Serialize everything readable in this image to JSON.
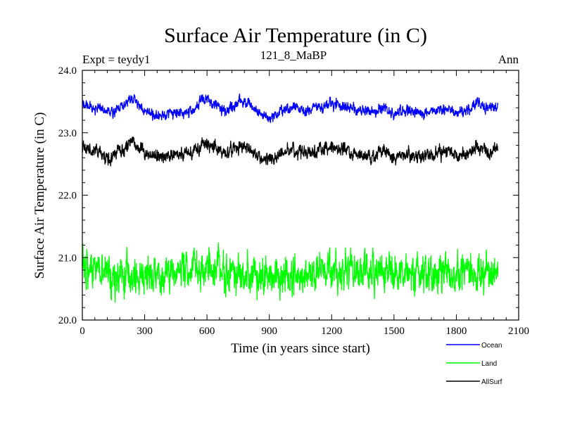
{
  "chart_data": {
    "type": "line",
    "title": "Surface Air Temperature (in C)",
    "subtitle": "121_8_MaBP",
    "experiment_label": "Expt = teydy1",
    "period_label": "Ann",
    "xlabel": "Time (in years since start)",
    "ylabel": "Surface Air Temperature (in C)",
    "xlim": [
      0,
      2100
    ],
    "ylim": [
      20.0,
      24.0
    ],
    "x_ticks": [
      0,
      300,
      600,
      900,
      1200,
      1500,
      1800,
      2100
    ],
    "x_tick_labels": [
      "0",
      "300",
      "600",
      "900",
      "1200",
      "1500",
      "1800",
      "2100"
    ],
    "y_ticks": [
      20.0,
      21.0,
      22.0,
      23.0,
      24.0
    ],
    "y_tick_labels": [
      "20.0",
      "21.0",
      "22.0",
      "23.0",
      "24.0"
    ],
    "x_minor_step": 60,
    "y_minor_step": 0.2,
    "grid": false,
    "legend_position": "bottom-right",
    "series": [
      {
        "name": "Ocean",
        "color": "#0000ff",
        "x_start": 0,
        "x_end": 2000,
        "x_step": 1,
        "mean": 23.4,
        "noise_amplitude": 0.08,
        "low_freq_anchors": [
          [
            0,
            23.45
          ],
          [
            60,
            23.4
          ],
          [
            130,
            23.32
          ],
          [
            200,
            23.45
          ],
          [
            240,
            23.55
          ],
          [
            280,
            23.4
          ],
          [
            330,
            23.3
          ],
          [
            400,
            23.28
          ],
          [
            470,
            23.32
          ],
          [
            530,
            23.35
          ],
          [
            590,
            23.55
          ],
          [
            640,
            23.45
          ],
          [
            700,
            23.36
          ],
          [
            760,
            23.5
          ],
          [
            800,
            23.45
          ],
          [
            860,
            23.3
          ],
          [
            900,
            23.22
          ],
          [
            960,
            23.34
          ],
          [
            1010,
            23.4
          ],
          [
            1080,
            23.35
          ],
          [
            1150,
            23.4
          ],
          [
            1200,
            23.48
          ],
          [
            1260,
            23.42
          ],
          [
            1320,
            23.36
          ],
          [
            1390,
            23.32
          ],
          [
            1450,
            23.4
          ],
          [
            1500,
            23.3
          ],
          [
            1550,
            23.35
          ],
          [
            1620,
            23.32
          ],
          [
            1700,
            23.34
          ],
          [
            1760,
            23.4
          ],
          [
            1800,
            23.32
          ],
          [
            1860,
            23.36
          ],
          [
            1900,
            23.5
          ],
          [
            1950,
            23.38
          ],
          [
            2000,
            23.42
          ]
        ]
      },
      {
        "name": "Land",
        "color": "#00ff00",
        "x_start": 0,
        "x_end": 2000,
        "x_step": 1,
        "mean": 20.75,
        "noise_amplitude": 0.28,
        "low_freq_anchors": [
          [
            0,
            20.78
          ],
          [
            300,
            20.72
          ],
          [
            600,
            20.82
          ],
          [
            900,
            20.7
          ],
          [
            1200,
            20.78
          ],
          [
            1500,
            20.74
          ],
          [
            1800,
            20.76
          ],
          [
            2000,
            20.78
          ]
        ]
      },
      {
        "name": "AllSurf",
        "color": "#000000",
        "x_start": 0,
        "x_end": 2000,
        "x_step": 1,
        "mean": 22.72,
        "noise_amplitude": 0.1,
        "low_freq_anchors": [
          [
            0,
            22.75
          ],
          [
            60,
            22.72
          ],
          [
            130,
            22.62
          ],
          [
            200,
            22.75
          ],
          [
            240,
            22.85
          ],
          [
            280,
            22.72
          ],
          [
            330,
            22.62
          ],
          [
            400,
            22.62
          ],
          [
            470,
            22.66
          ],
          [
            530,
            22.68
          ],
          [
            590,
            22.85
          ],
          [
            640,
            22.76
          ],
          [
            700,
            22.68
          ],
          [
            760,
            22.8
          ],
          [
            800,
            22.75
          ],
          [
            860,
            22.6
          ],
          [
            900,
            22.55
          ],
          [
            960,
            22.66
          ],
          [
            1010,
            22.72
          ],
          [
            1080,
            22.68
          ],
          [
            1150,
            22.72
          ],
          [
            1200,
            22.8
          ],
          [
            1260,
            22.74
          ],
          [
            1320,
            22.66
          ],
          [
            1390,
            22.63
          ],
          [
            1450,
            22.7
          ],
          [
            1500,
            22.6
          ],
          [
            1550,
            22.65
          ],
          [
            1620,
            22.62
          ],
          [
            1700,
            22.64
          ],
          [
            1760,
            22.72
          ],
          [
            1800,
            22.63
          ],
          [
            1860,
            22.66
          ],
          [
            1900,
            22.78
          ],
          [
            1950,
            22.68
          ],
          [
            2000,
            22.76
          ]
        ]
      }
    ]
  }
}
